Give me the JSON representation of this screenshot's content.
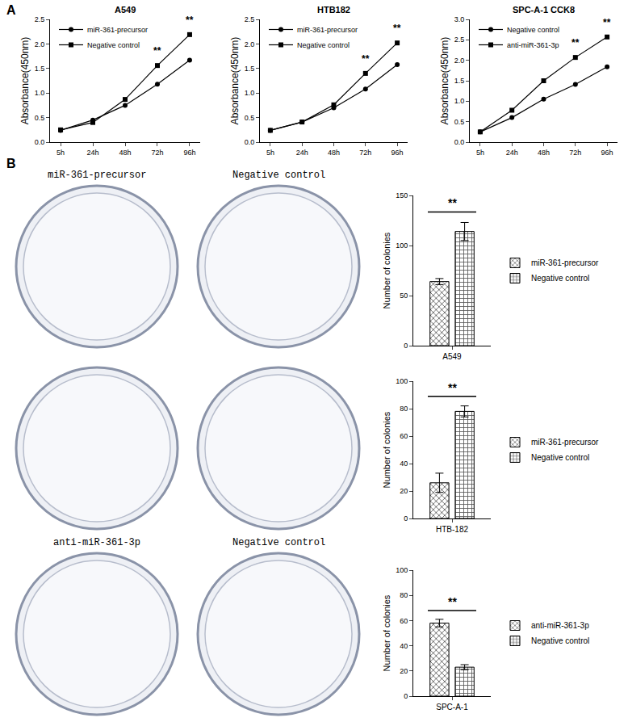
{
  "panel_labels": [
    "A",
    "B"
  ],
  "plates": [
    [
      "miR-361-precursor",
      "Negative control"
    ],
    null,
    [
      "anti-miR-361-3p",
      "Negative control"
    ]
  ],
  "chart_data": [
    {
      "type": "line",
      "title": "A549",
      "y_label": "Absorbance(450nm)",
      "categories": [
        "5h",
        "24h",
        "48h",
        "72h",
        "96h"
      ],
      "series": [
        {
          "name": "miR-361-precursor",
          "color": "#000000",
          "marker": "circle",
          "values": [
            0.24,
            0.45,
            0.75,
            1.18,
            1.67
          ]
        },
        {
          "name": "Negative control",
          "color": "#000000",
          "marker": "square",
          "values": [
            0.25,
            0.4,
            0.87,
            1.56,
            2.19
          ]
        }
      ],
      "ylim": [
        0,
        2.5
      ],
      "yticks": [
        {
          "value": 0,
          "label": "0.0"
        },
        0.5,
        {
          "value": 1,
          "label": "1.0"
        },
        1.5,
        {
          "value": 2,
          "label": "2.0"
        },
        2.5
      ],
      "legend": "upper left",
      "annotations": [
        {
          "x": "72h",
          "text": "**"
        },
        {
          "x": "96h",
          "text": "**"
        }
      ]
    },
    {
      "type": "line",
      "title": "HTB182",
      "y_label": "Absorbance(450nm)",
      "categories": [
        "5h",
        "24h",
        "48h",
        "72h",
        "96h"
      ],
      "series": [
        {
          "name": "miR-361-precursor",
          "color": "#000000",
          "marker": "circle",
          "values": [
            0.24,
            0.41,
            0.7,
            1.08,
            1.58
          ]
        },
        {
          "name": "Negative control",
          "color": "#000000",
          "marker": "square",
          "values": [
            0.24,
            0.41,
            0.76,
            1.4,
            2.02
          ]
        }
      ],
      "ylim": [
        0,
        2.5
      ],
      "yticks": [
        {
          "value": 0,
          "label": "0.0"
        },
        0.5,
        {
          "value": 1,
          "label": "1.0"
        },
        1.5,
        {
          "value": 2,
          "label": "2.0"
        },
        2.5
      ],
      "legend": "upper left",
      "annotations": [
        {
          "x": "72h",
          "text": "**"
        },
        {
          "x": "96h",
          "text": "**"
        }
      ]
    },
    {
      "type": "line",
      "title": "SPC-A-1 CCK8",
      "y_label": "Absorbance(450nm)",
      "categories": [
        "5h",
        "24h",
        "48h",
        "72h",
        "96h"
      ],
      "series": [
        {
          "name": "Negative control",
          "color": "#000000",
          "marker": "circle",
          "values": [
            0.25,
            0.6,
            1.05,
            1.41,
            1.84
          ]
        },
        {
          "name": "anti-miR-361-3p",
          "color": "#000000",
          "marker": "square",
          "values": [
            0.25,
            0.78,
            1.5,
            2.07,
            2.57
          ]
        }
      ],
      "ylim": [
        0,
        3
      ],
      "yticks": [
        {
          "value": 0,
          "label": "0.0"
        },
        0.5,
        {
          "value": 1,
          "label": "1.0"
        },
        1.5,
        {
          "value": 2,
          "label": "2.0"
        },
        2.5,
        {
          "value": 3,
          "label": "3.0"
        }
      ],
      "legend": "upper left",
      "annotations": [
        {
          "x": "72h",
          "text": "**"
        },
        {
          "x": "96h",
          "text": "**"
        }
      ]
    },
    {
      "type": "bar",
      "y_label": "Number of colonies",
      "categories": [
        "A549"
      ],
      "series": [
        {
          "name": "miR-361-precursor",
          "color": "#e6e6e6",
          "values": [
            64
          ],
          "errors": [
            3
          ]
        },
        {
          "name": "Negative control",
          "color": "#f2f2f2",
          "values": [
            114
          ],
          "errors": [
            9
          ]
        }
      ],
      "ylim": [
        0,
        150
      ],
      "yticks": [
        0,
        50,
        100,
        150
      ],
      "legend": "right",
      "annotations": [
        {
          "text": "**"
        }
      ]
    },
    {
      "type": "bar",
      "y_label": "Number of colonies",
      "categories": [
        "HTB-182"
      ],
      "series": [
        {
          "name": "miR-361-precursor",
          "color": "#e6e6e6",
          "values": [
            26
          ],
          "errors": [
            7
          ]
        },
        {
          "name": "Negative control",
          "color": "#f2f2f2",
          "values": [
            78
          ],
          "errors": [
            4
          ]
        }
      ],
      "ylim": [
        0,
        100
      ],
      "yticks": [
        0,
        20,
        40,
        60,
        80,
        100
      ],
      "legend": "right",
      "annotations": [
        {
          "text": "**"
        }
      ]
    },
    {
      "type": "bar",
      "y_label": "Number of colonies",
      "categories": [
        "SPC-A-1"
      ],
      "series": [
        {
          "name": "anti-miR-361-3p",
          "color": "#e6e6e6",
          "values": [
            58
          ],
          "errors": [
            3
          ]
        },
        {
          "name": "Negative control",
          "color": "#f2f2f2",
          "values": [
            23
          ],
          "errors": [
            2
          ]
        }
      ],
      "ylim": [
        0,
        100
      ],
      "yticks": [
        0,
        20,
        40,
        60,
        80,
        100
      ],
      "legend": "right",
      "annotations": [
        {
          "text": "**"
        }
      ]
    }
  ]
}
